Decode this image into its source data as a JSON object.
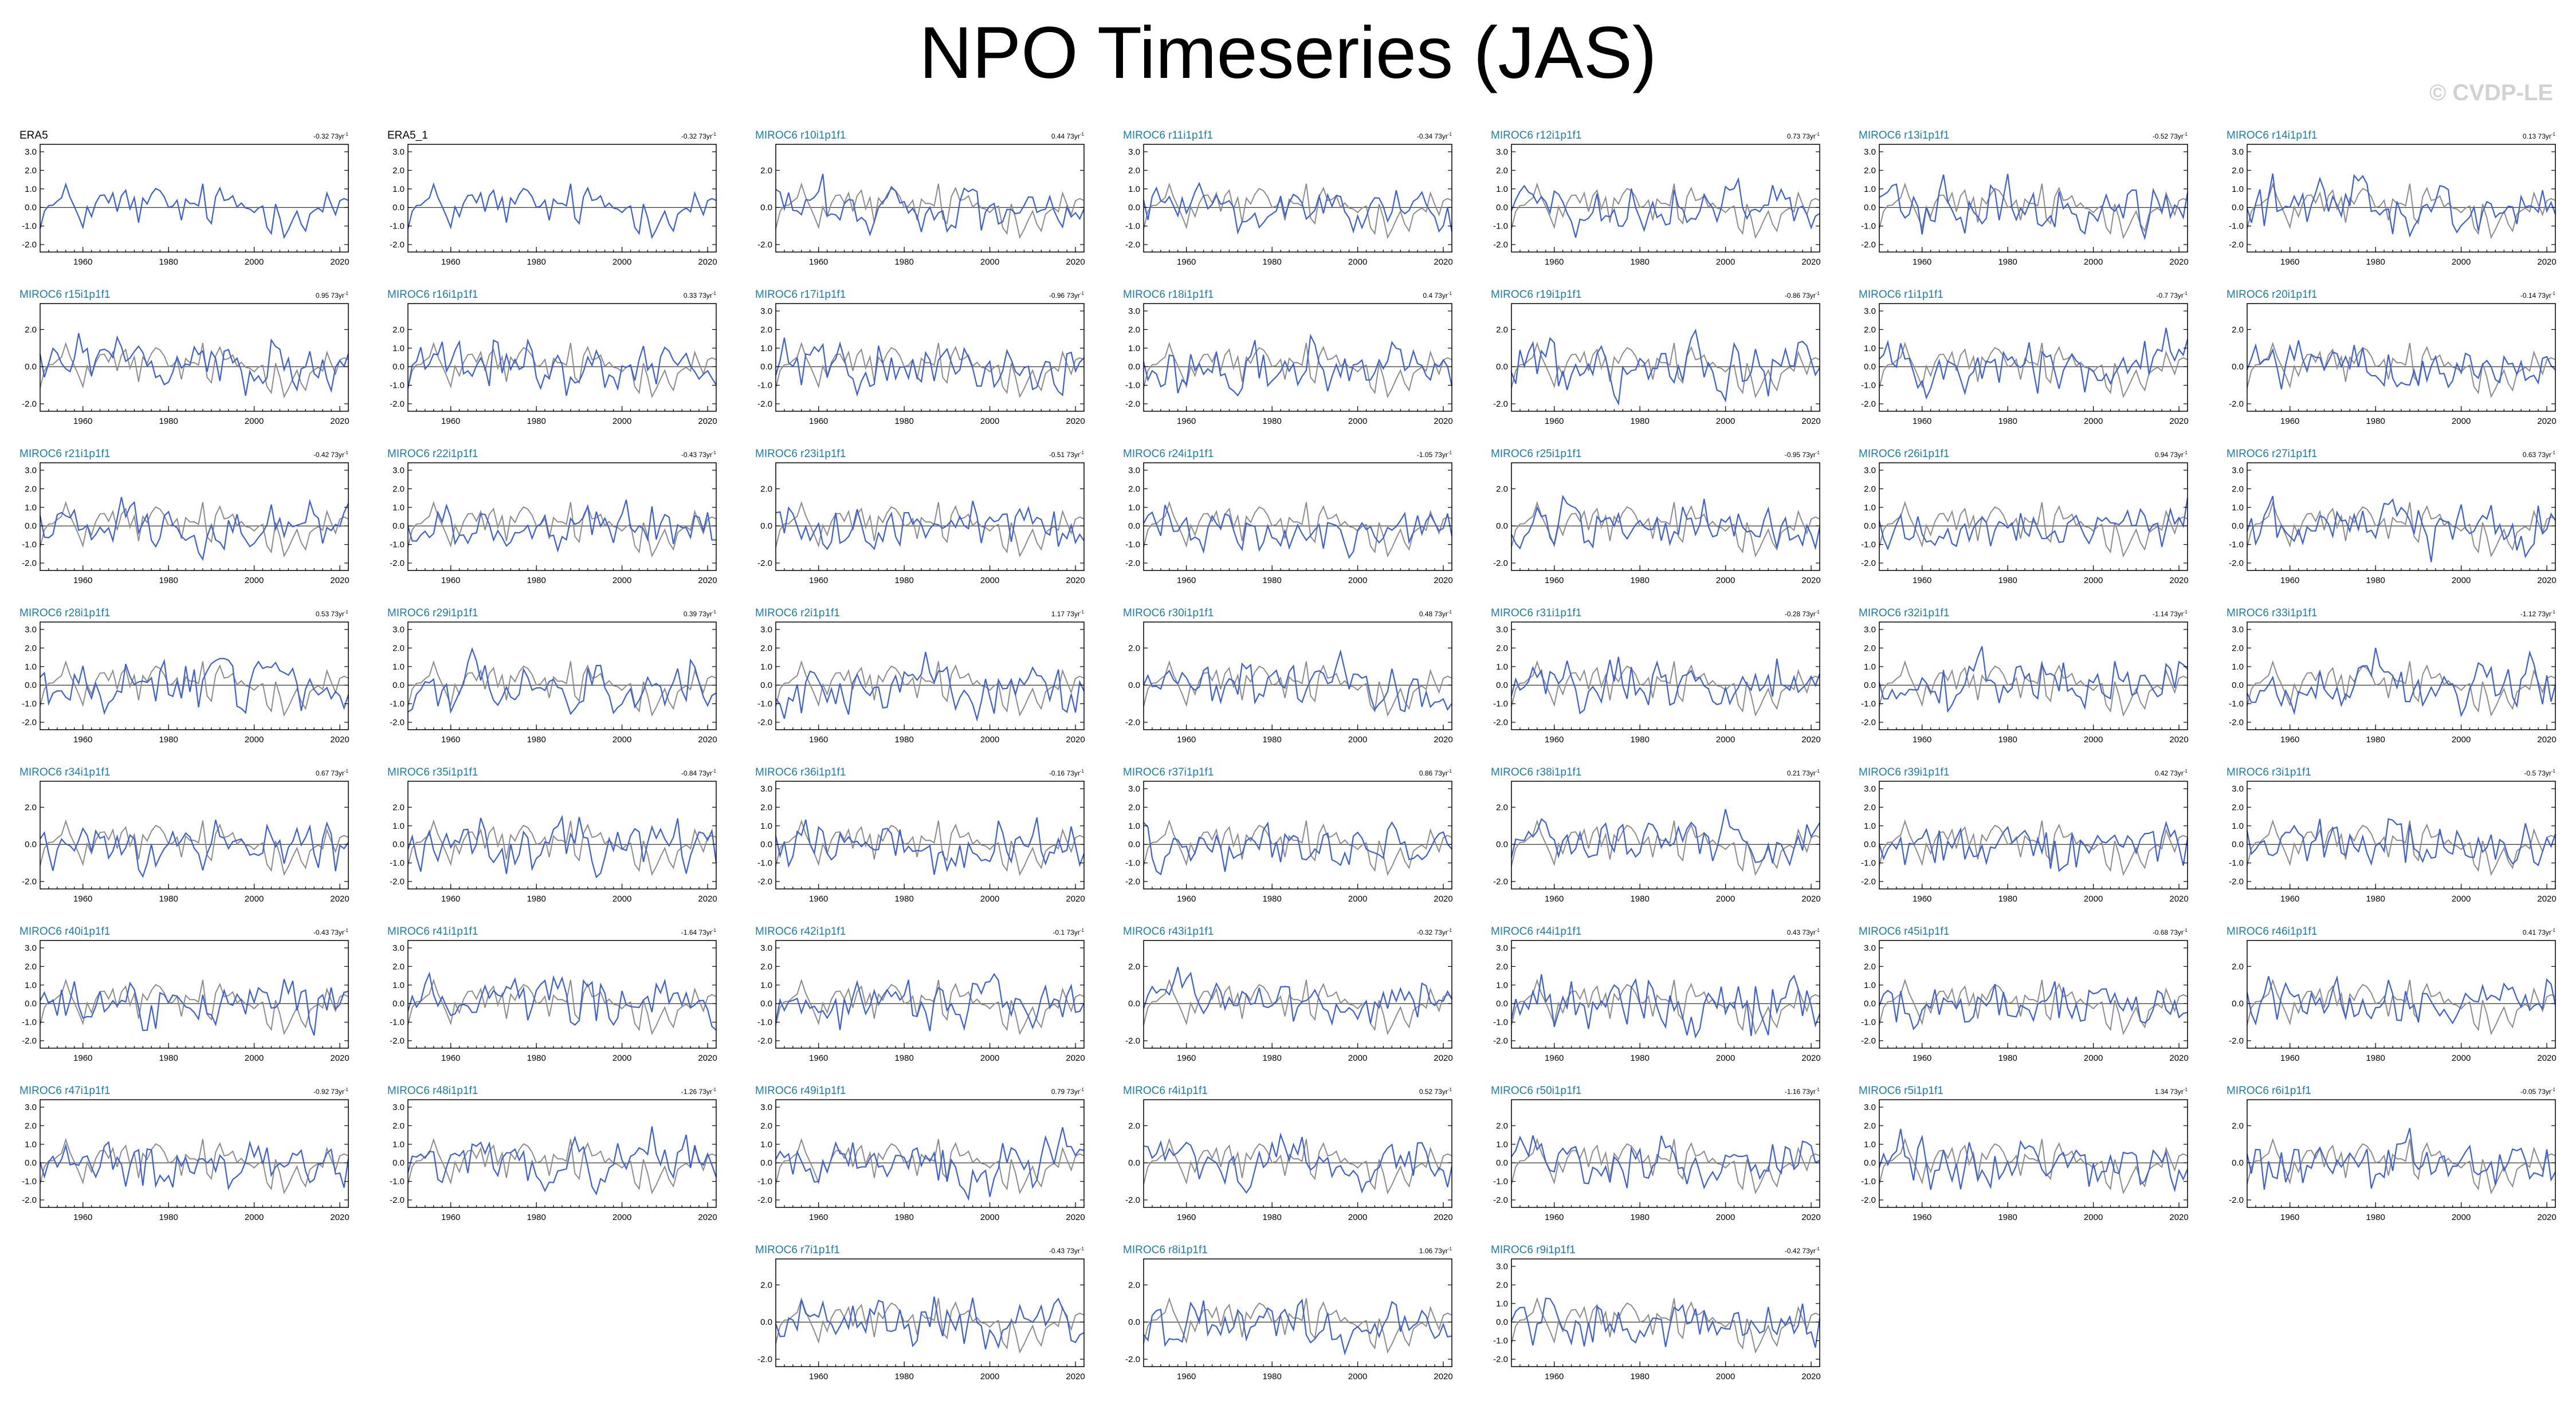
{
  "figure": {
    "title": "NPO Timeseries (JAS)",
    "watermark": "© CVDP-LE",
    "trend_unit": "73yr",
    "colors": {
      "observed_title": "#000000",
      "model_title": "#1a7da8",
      "member_line": "#3b5fd4",
      "obs_line": "#8c8c8c",
      "axis": "#000000"
    }
  },
  "chart_data": {
    "type": "line",
    "note_on_values": "approximate: per-panel series are not legible at this resolution; a synthesized series per panel is drawn",
    "x_range": [
      1950,
      2022
    ],
    "x_ticks": [
      1960,
      1980,
      2000,
      2020
    ],
    "panels": [
      {
        "label": "ERA5",
        "trend": "-0.32",
        "yticks": [
          "3.0",
          "2.0",
          "1.0",
          "0.0",
          "-1.0",
          "-2.0"
        ],
        "observed": true
      },
      {
        "label": "ERA5_1",
        "trend": "-0.32",
        "yticks": [
          "3.0",
          "2.0",
          "1.0",
          "0.0",
          "-1.0",
          "-2.0"
        ],
        "observed": true
      },
      {
        "label": "MIROC6 r10i1p1f1",
        "trend": "0.44",
        "yticks": [
          "2.0",
          "0.0",
          "-2.0"
        ]
      },
      {
        "label": "MIROC6 r11i1p1f1",
        "trend": "-0.34",
        "yticks": [
          "3.0",
          "2.0",
          "1.0",
          "0.0",
          "-1.0",
          "-2.0"
        ]
      },
      {
        "label": "MIROC6 r12i1p1f1",
        "trend": "0.73",
        "yticks": [
          "3.0",
          "2.0",
          "1.0",
          "0.0",
          "-1.0",
          "-2.0"
        ]
      },
      {
        "label": "MIROC6 r13i1p1f1",
        "trend": "-0.52",
        "yticks": [
          "3.0",
          "2.0",
          "1.0",
          "0.0",
          "-1.0",
          "-2.0"
        ]
      },
      {
        "label": "MIROC6 r14i1p1f1",
        "trend": "0.13",
        "yticks": [
          "3.0",
          "2.0",
          "1.0",
          "0.0",
          "-1.0",
          "-2.0"
        ]
      },
      {
        "label": "MIROC6 r15i1p1f1",
        "trend": "0.95",
        "yticks": [
          "2.0",
          "0.0",
          "-2.0"
        ]
      },
      {
        "label": "MIROC6 r16i1p1f1",
        "trend": "0.33",
        "yticks": [
          "2.0",
          "1.0",
          "0.0",
          "-1.0",
          "-2.0"
        ]
      },
      {
        "label": "MIROC6 r17i1p1f1",
        "trend": "-0.96",
        "yticks": [
          "3.0",
          "2.0",
          "1.0",
          "0.0",
          "-1.0",
          "-2.0"
        ]
      },
      {
        "label": "MIROC6 r18i1p1f1",
        "trend": "0.4",
        "yticks": [
          "3.0",
          "2.0",
          "1.0",
          "0.0",
          "-1.0",
          "-2.0"
        ]
      },
      {
        "label": "MIROC6 r19i1p1f1",
        "trend": "-0.86",
        "yticks": [
          "2.0",
          "0.0",
          "-2.0"
        ]
      },
      {
        "label": "MIROC6 r1i1p1f1",
        "trend": "-0.7",
        "yticks": [
          "3.0",
          "2.0",
          "1.0",
          "0.0",
          "-1.0",
          "-2.0"
        ]
      },
      {
        "label": "MIROC6 r20i1p1f1",
        "trend": "-0.14",
        "yticks": [
          "2.0",
          "0.0",
          "-2.0"
        ]
      },
      {
        "label": "MIROC6 r21i1p1f1",
        "trend": "-0.42",
        "yticks": [
          "3.0",
          "2.0",
          "1.0",
          "0.0",
          "-1.0",
          "-2.0"
        ]
      },
      {
        "label": "MIROC6 r22i1p1f1",
        "trend": "-0.43",
        "yticks": [
          "3.0",
          "2.0",
          "1.0",
          "0.0",
          "-1.0",
          "-2.0"
        ]
      },
      {
        "label": "MIROC6 r23i1p1f1",
        "trend": "-0.51",
        "yticks": [
          "2.0",
          "0.0",
          "-2.0"
        ]
      },
      {
        "label": "MIROC6 r24i1p1f1",
        "trend": "-1.05",
        "yticks": [
          "3.0",
          "2.0",
          "1.0",
          "0.0",
          "-1.0",
          "-2.0"
        ]
      },
      {
        "label": "MIROC6 r25i1p1f1",
        "trend": "-0.95",
        "yticks": [
          "2.0",
          "0.0",
          "-2.0"
        ]
      },
      {
        "label": "MIROC6 r26i1p1f1",
        "trend": "0.94",
        "yticks": [
          "3.0",
          "2.0",
          "1.0",
          "0.0",
          "-1.0",
          "-2.0"
        ]
      },
      {
        "label": "MIROC6 r27i1p1f1",
        "trend": "0.63",
        "yticks": [
          "3.0",
          "2.0",
          "1.0",
          "0.0",
          "-1.0",
          "-2.0"
        ]
      },
      {
        "label": "MIROC6 r28i1p1f1",
        "trend": "0.53",
        "yticks": [
          "3.0",
          "2.0",
          "1.0",
          "0.0",
          "-1.0",
          "-2.0"
        ]
      },
      {
        "label": "MIROC6 r29i1p1f1",
        "trend": "0.39",
        "yticks": [
          "3.0",
          "2.0",
          "1.0",
          "0.0",
          "-1.0",
          "-2.0"
        ]
      },
      {
        "label": "MIROC6 r2i1p1f1",
        "trend": "1.17",
        "yticks": [
          "3.0",
          "2.0",
          "1.0",
          "0.0",
          "-1.0",
          "-2.0"
        ]
      },
      {
        "label": "MIROC6 r30i1p1f1",
        "trend": "0.48",
        "yticks": [
          "2.0",
          "0.0",
          "-2.0"
        ]
      },
      {
        "label": "MIROC6 r31i1p1f1",
        "trend": "-0.28",
        "yticks": [
          "3.0",
          "2.0",
          "1.0",
          "0.0",
          "-1.0",
          "-2.0"
        ]
      },
      {
        "label": "MIROC6 r32i1p1f1",
        "trend": "-1.14",
        "yticks": [
          "3.0",
          "2.0",
          "1.0",
          "0.0",
          "-1.0",
          "-2.0"
        ]
      },
      {
        "label": "MIROC6 r33i1p1f1",
        "trend": "-1.12",
        "yticks": [
          "3.0",
          "2.0",
          "1.0",
          "0.0",
          "-1.0",
          "-2.0"
        ]
      },
      {
        "label": "MIROC6 r34i1p1f1",
        "trend": "0.67",
        "yticks": [
          "2.0",
          "0.0",
          "-2.0"
        ]
      },
      {
        "label": "MIROC6 r35i1p1f1",
        "trend": "-0.84",
        "yticks": [
          "2.0",
          "1.0",
          "0.0",
          "-1.0",
          "-2.0"
        ]
      },
      {
        "label": "MIROC6 r36i1p1f1",
        "trend": "-0.16",
        "yticks": [
          "3.0",
          "2.0",
          "1.0",
          "0.0",
          "-1.0",
          "-2.0"
        ]
      },
      {
        "label": "MIROC6 r37i1p1f1",
        "trend": "0.86",
        "yticks": [
          "3.0",
          "2.0",
          "1.0",
          "0.0",
          "-1.0",
          "-2.0"
        ]
      },
      {
        "label": "MIROC6 r38i1p1f1",
        "trend": "0.21",
        "yticks": [
          "2.0",
          "0.0",
          "-2.0"
        ]
      },
      {
        "label": "MIROC6 r39i1p1f1",
        "trend": "0.42",
        "yticks": [
          "3.0",
          "2.0",
          "1.0",
          "0.0",
          "-1.0",
          "-2.0"
        ]
      },
      {
        "label": "MIROC6 r3i1p1f1",
        "trend": "-0.5",
        "yticks": [
          "3.0",
          "2.0",
          "1.0",
          "0.0",
          "-1.0",
          "-2.0"
        ]
      },
      {
        "label": "MIROC6 r40i1p1f1",
        "trend": "-0.43",
        "yticks": [
          "3.0",
          "2.0",
          "1.0",
          "0.0",
          "-1.0",
          "-2.0"
        ]
      },
      {
        "label": "MIROC6 r41i1p1f1",
        "trend": "-1.64",
        "yticks": [
          "3.0",
          "2.0",
          "1.0",
          "0.0",
          "-1.0",
          "-2.0"
        ]
      },
      {
        "label": "MIROC6 r42i1p1f1",
        "trend": "-0.1",
        "yticks": [
          "3.0",
          "2.0",
          "1.0",
          "0.0",
          "-1.0",
          "-2.0"
        ]
      },
      {
        "label": "MIROC6 r43i1p1f1",
        "trend": "-0.32",
        "yticks": [
          "2.0",
          "0.0",
          "-2.0"
        ]
      },
      {
        "label": "MIROC6 r44i1p1f1",
        "trend": "0.43",
        "yticks": [
          "3.0",
          "2.0",
          "1.0",
          "0.0",
          "-1.0",
          "-2.0"
        ]
      },
      {
        "label": "MIROC6 r45i1p1f1",
        "trend": "-0.68",
        "yticks": [
          "3.0",
          "2.0",
          "1.0",
          "0.0",
          "-1.0",
          "-2.0"
        ]
      },
      {
        "label": "MIROC6 r46i1p1f1",
        "trend": "0.41",
        "yticks": [
          "2.0",
          "0.0",
          "-2.0"
        ]
      },
      {
        "label": "MIROC6 r47i1p1f1",
        "trend": "-0.92",
        "yticks": [
          "3.0",
          "2.0",
          "1.0",
          "0.0",
          "-1.0",
          "-2.0"
        ]
      },
      {
        "label": "MIROC6 r48i1p1f1",
        "trend": "-1.26",
        "yticks": [
          "3.0",
          "2.0",
          "1.0",
          "0.0",
          "-1.0",
          "-2.0"
        ]
      },
      {
        "label": "MIROC6 r49i1p1f1",
        "trend": "0.79",
        "yticks": [
          "3.0",
          "2.0",
          "1.0",
          "0.0",
          "-1.0",
          "-2.0"
        ]
      },
      {
        "label": "MIROC6 r4i1p1f1",
        "trend": "0.52",
        "yticks": [
          "2.0",
          "0.0",
          "-2.0"
        ]
      },
      {
        "label": "MIROC6 r50i1p1f1",
        "trend": "-1.16",
        "yticks": [
          "2.0",
          "1.0",
          "0.0",
          "-1.0",
          "-2.0"
        ]
      },
      {
        "label": "MIROC6 r5i1p1f1",
        "trend": "1.34",
        "yticks": [
          "3.0",
          "2.0",
          "1.0",
          "0.0",
          "-1.0",
          "-2.0"
        ]
      },
      {
        "label": "MIROC6 r6i1p1f1",
        "trend": "-0.05",
        "yticks": [
          "2.0",
          "0.0",
          "-2.0"
        ]
      },
      {
        "label": "MIROC6 r7i1p1f1",
        "trend": "-0.43",
        "yticks": [
          "2.0",
          "0.0",
          "-2.0"
        ]
      },
      {
        "label": "MIROC6 r8i1p1f1",
        "trend": "1.06",
        "yticks": [
          "2.0",
          "0.0",
          "-2.0"
        ]
      },
      {
        "label": "MIROC6 r9i1p1f1",
        "trend": "-0.42",
        "yticks": [
          "3.0",
          "2.0",
          "1.0",
          "0.0",
          "-1.0",
          "-2.0"
        ]
      }
    ]
  }
}
